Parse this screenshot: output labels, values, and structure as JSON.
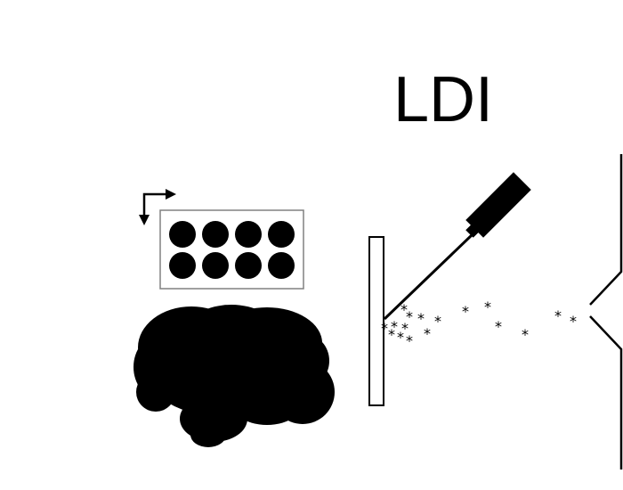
{
  "title": "LDI",
  "colors": {
    "ink": "#000000",
    "paper": "#ffffff",
    "plate_border": "#808080"
  },
  "icons": {
    "direction": "corner-arrow-icon",
    "plate": "well-plate-icon",
    "brain": "brain-silhouette-icon",
    "laser": "laser-icon",
    "target": "target-plate-icon",
    "ions": "ion-particle-icon",
    "inlet": "mass-spec-inlet-icon"
  },
  "well_plate": {
    "rows": 2,
    "columns": 4
  },
  "ion_symbol": "*"
}
